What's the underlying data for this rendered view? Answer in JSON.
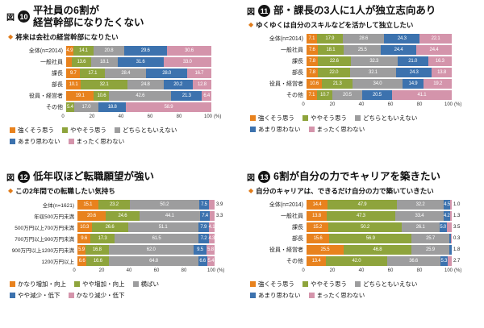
{
  "palette": [
    "#e8821e",
    "#8ea43c",
    "#9d9d9e",
    "#3c72ae",
    "#d494ab"
  ],
  "palette_names": {
    "orange": "#e8821e",
    "green": "#8ea43c",
    "gray": "#9d9d9e",
    "blue": "#3c72ae",
    "pink": "#d494ab"
  },
  "badge_color": "#151515",
  "axis": {
    "ticks": [
      0,
      20,
      40,
      60,
      80,
      100
    ],
    "unit": "(%)"
  },
  "chart_data": [
    {
      "id": "fig10",
      "type": "bar",
      "variant": "stacked-horizontal",
      "fig_label": "図",
      "fig_number": "10",
      "title": "平社員の6割が\n経営幹部になりたくない",
      "subtitle_bullet": "◆",
      "subtitle": "将来は会社の経営幹部になりたい",
      "xlim": [
        0,
        100
      ],
      "unit": "(%)",
      "legend_position": "bottom",
      "categories": [
        "全体(n=2014)",
        "一般社員",
        "課長",
        "部長",
        "役員・経営者",
        "その他"
      ],
      "legend": [
        "強くそう思う",
        "ややそう思う",
        "どちらともいえない",
        "あまり思わない",
        "まったく思わない"
      ],
      "series": [
        {
          "name": "強くそう思う",
          "values": [
            4.9,
            3.7,
            9.7,
            10.1,
            19.1,
            0.0
          ]
        },
        {
          "name": "ややそう思う",
          "values": [
            14.1,
            13.6,
            17.1,
            32.1,
            10.6,
            5.4
          ]
        },
        {
          "name": "どちらともいえない",
          "values": [
            20.8,
            18.1,
            28.4,
            24.8,
            42.6,
            17.0
          ]
        },
        {
          "name": "あまり思わない",
          "values": [
            29.6,
            31.6,
            28.0,
            20.2,
            21.3,
            18.8
          ]
        },
        {
          "name": "まったく思わない",
          "values": [
            30.6,
            33.0,
            16.7,
            12.8,
            6.4,
            58.9
          ]
        }
      ]
    },
    {
      "id": "fig11",
      "type": "bar",
      "variant": "stacked-horizontal",
      "fig_label": "図",
      "fig_number": "11",
      "title": "部・課長の3人に1人が独立志向あり",
      "subtitle_bullet": "◆",
      "subtitle": "ゆくゆくは自分のスキルなどを活かして独立したい",
      "xlim": [
        0,
        100
      ],
      "unit": "(%)",
      "legend_position": "bottom",
      "categories": [
        "全体(n=2014)",
        "一般社員",
        "課長",
        "部長",
        "役員・経営者",
        "その他"
      ],
      "legend": [
        "強くそう思う",
        "ややそう思う",
        "どちらともいえない",
        "あまり思わない",
        "まったく思わない"
      ],
      "series": [
        {
          "name": "強くそう思う",
          "values": [
            7.1,
            7.6,
            7.8,
            7.8,
            10.6,
            7.1
          ]
        },
        {
          "name": "ややそう思う",
          "values": [
            17.9,
            18.1,
            22.6,
            22.0,
            21.3,
            10.7
          ]
        },
        {
          "name": "どちらともいえない",
          "values": [
            28.6,
            25.5,
            32.3,
            32.1,
            34.0,
            20.5
          ]
        },
        {
          "name": "あまり思わない",
          "values": [
            24.3,
            24.4,
            21.0,
            24.3,
            14.9,
            20.5
          ]
        },
        {
          "name": "まったく思わない",
          "values": [
            22.1,
            24.4,
            16.3,
            13.8,
            19.2,
            41.1
          ]
        }
      ]
    },
    {
      "id": "fig12",
      "type": "bar",
      "variant": "stacked-horizontal",
      "fig_label": "図",
      "fig_number": "12",
      "title": "低年収ほど転職願望が強い",
      "subtitle_bullet": "◆",
      "subtitle": "この2年間での転職したい気持ち",
      "xlim": [
        0,
        100
      ],
      "unit": "(%)",
      "legend_position": "bottom",
      "categories": [
        "全体(n=1621)",
        "年収500万円未満",
        "500万円以上700万円未満",
        "700万円以上900万円未満",
        "900万円以上1200万円未満",
        "1200万円以上"
      ],
      "legend": [
        "かなり増加・向上",
        "やや増加・向上",
        "横ばい",
        "やや減少・低下",
        "かなり減少・低下"
      ],
      "series": [
        {
          "name": "かなり増加・向上",
          "values": [
            15.1,
            20.6,
            10.3,
            9.6,
            5.9,
            6.6
          ]
        },
        {
          "name": "やや増加・向上",
          "values": [
            23.2,
            24.6,
            26.6,
            17.3,
            16.8,
            16.6
          ]
        },
        {
          "name": "横ばい",
          "values": [
            50.2,
            44.1,
            51.1,
            61.5,
            62.0,
            64.8
          ]
        },
        {
          "name": "やや減少・低下",
          "values": [
            7.5,
            7.4,
            7.9,
            7.2,
            9.5,
            6.6
          ]
        },
        {
          "name": "かなり減少・低下",
          "values": [
            3.9,
            3.3,
            4.1,
            4.3,
            5.8,
            5.4
          ]
        }
      ]
    },
    {
      "id": "fig13",
      "type": "bar",
      "variant": "stacked-horizontal",
      "fig_label": "図",
      "fig_number": "13",
      "title": "6割が自分の力でキャリアを築きたい",
      "subtitle_bullet": "◆",
      "subtitle": "自分のキャリアは、できるだけ自分の力で築いていきたい",
      "xlim": [
        0,
        100
      ],
      "unit": "(%)",
      "legend_position": "bottom",
      "categories": [
        "全体(n=2014)",
        "一般社員",
        "課長",
        "部長",
        "役員・経営者",
        "その他"
      ],
      "legend": [
        "強くそう思う",
        "ややそう思う",
        "どちらともいえない",
        "あまり思わない",
        "まったく思わない"
      ],
      "series": [
        {
          "name": "強くそう思う",
          "values": [
            14.4,
            13.8,
            15.2,
            15.6,
            25.5,
            13.4
          ]
        },
        {
          "name": "ややそう思う",
          "values": [
            47.9,
            47.3,
            50.2,
            56.9,
            46.8,
            42.0
          ]
        },
        {
          "name": "どちらともいえない",
          "values": [
            32.2,
            33.4,
            26.1,
            25.7,
            25.9,
            36.6
          ]
        },
        {
          "name": "あまり思わない",
          "values": [
            4.5,
            4.2,
            5.0,
            1.5,
            1.8,
            5.3
          ]
        },
        {
          "name": "まったく思わない",
          "values": [
            1.0,
            1.3,
            3.5,
            0.3,
            0.0,
            2.7
          ]
        }
      ]
    }
  ]
}
